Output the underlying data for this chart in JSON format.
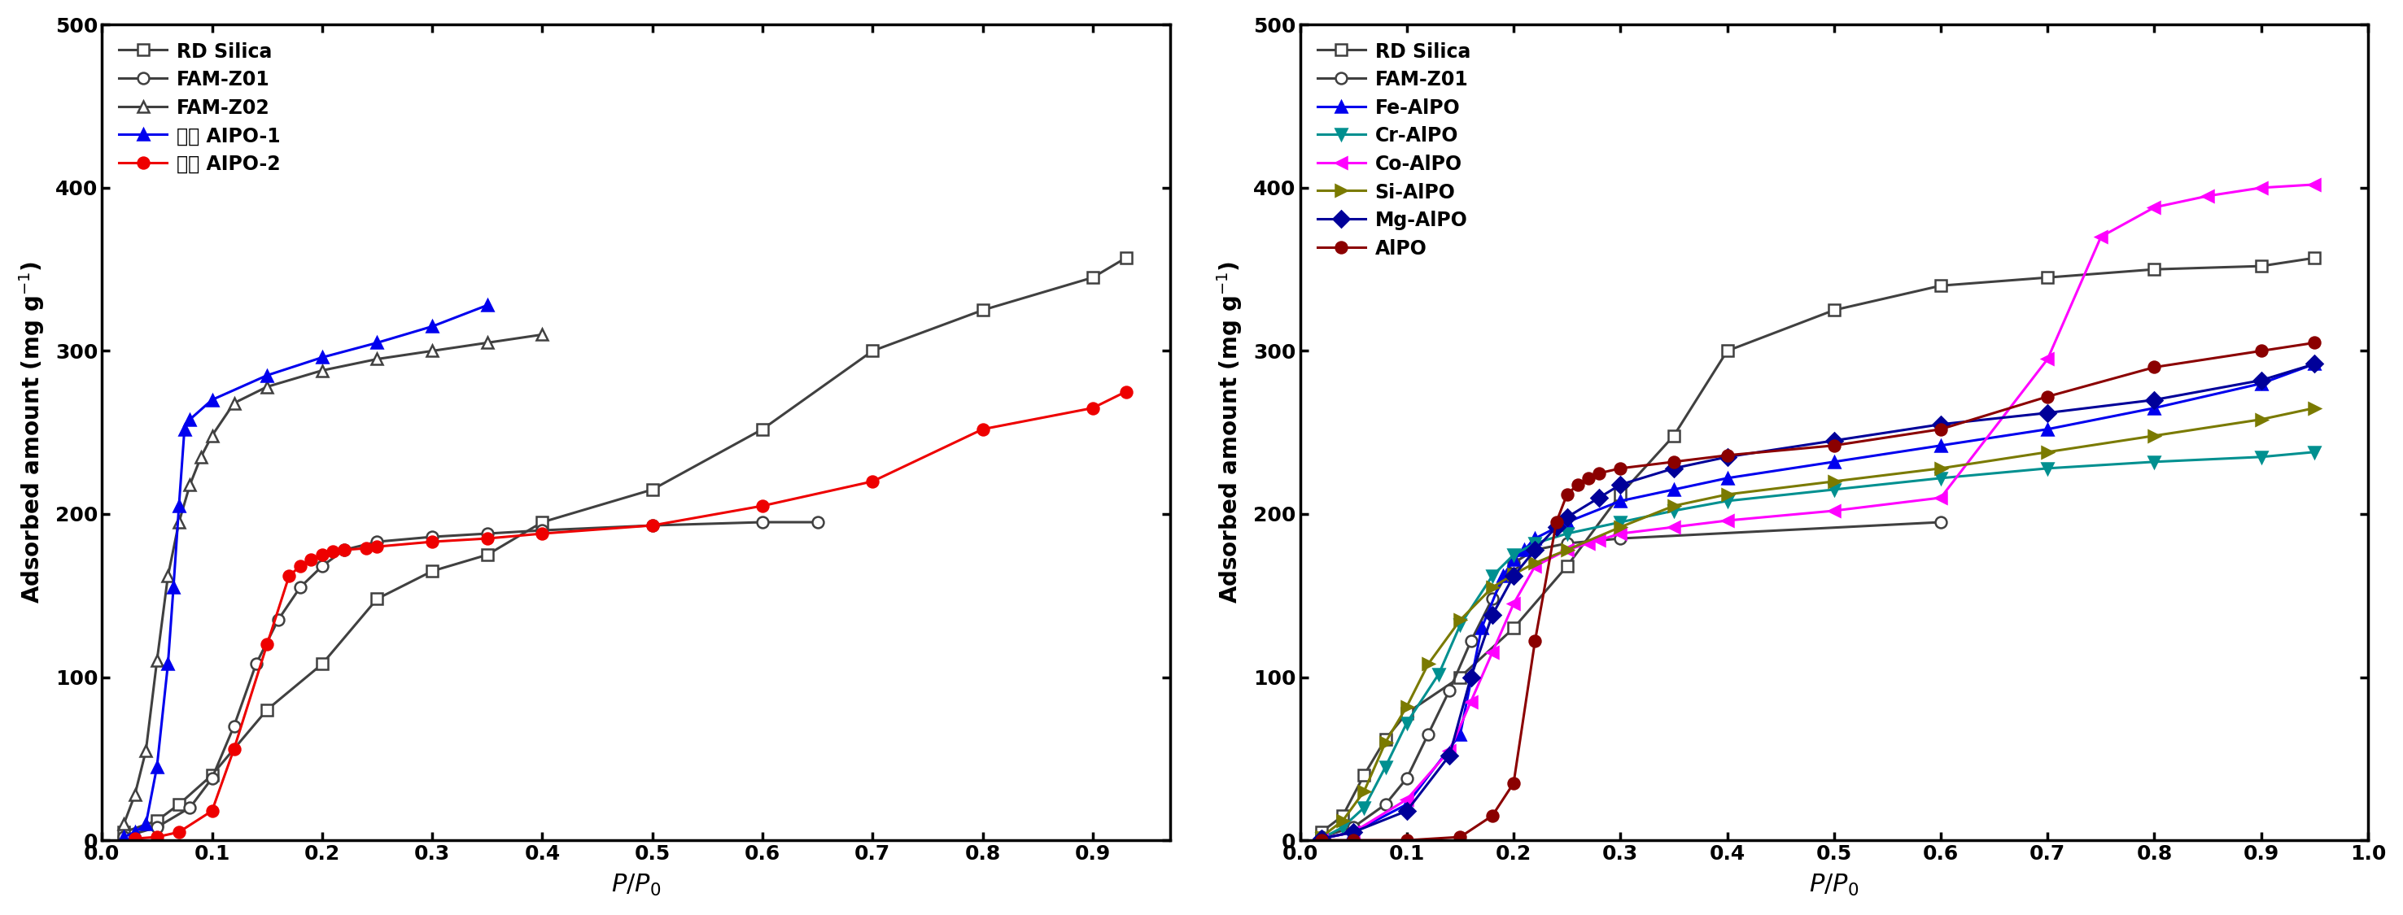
{
  "left": {
    "series": [
      {
        "label": "RD Silica",
        "color": "#404040",
        "marker": "s",
        "markerfacecolor": "white",
        "markeredgecolor": "#404040",
        "x": [
          0.02,
          0.05,
          0.07,
          0.1,
          0.15,
          0.2,
          0.25,
          0.3,
          0.35,
          0.4,
          0.5,
          0.6,
          0.7,
          0.8,
          0.9,
          0.93
        ],
        "y": [
          5,
          12,
          22,
          40,
          80,
          108,
          148,
          165,
          175,
          195,
          215,
          252,
          300,
          325,
          345,
          357
        ]
      },
      {
        "label": "FAM-Z01",
        "color": "#404040",
        "marker": "o",
        "markerfacecolor": "white",
        "markeredgecolor": "#404040",
        "x": [
          0.02,
          0.05,
          0.08,
          0.1,
          0.12,
          0.14,
          0.16,
          0.18,
          0.2,
          0.22,
          0.25,
          0.3,
          0.35,
          0.4,
          0.5,
          0.6,
          0.65
        ],
        "y": [
          2,
          8,
          20,
          38,
          70,
          108,
          135,
          155,
          168,
          178,
          183,
          186,
          188,
          190,
          193,
          195,
          195
        ]
      },
      {
        "label": "FAM-Z02",
        "color": "#404040",
        "marker": "^",
        "markerfacecolor": "white",
        "markeredgecolor": "#404040",
        "x": [
          0.02,
          0.03,
          0.04,
          0.05,
          0.06,
          0.07,
          0.08,
          0.09,
          0.1,
          0.12,
          0.15,
          0.2,
          0.25,
          0.3,
          0.35,
          0.4
        ],
        "y": [
          10,
          28,
          55,
          110,
          162,
          195,
          218,
          235,
          248,
          268,
          278,
          288,
          295,
          300,
          305,
          310
        ]
      },
      {
        "label": "합성 AIPO-1",
        "color": "#0000ee",
        "marker": "^",
        "markerfacecolor": "#0000ee",
        "markeredgecolor": "#0000ee",
        "x": [
          0.02,
          0.03,
          0.04,
          0.05,
          0.06,
          0.065,
          0.07,
          0.075,
          0.08,
          0.1,
          0.15,
          0.2,
          0.25,
          0.3,
          0.35
        ],
        "y": [
          2,
          5,
          10,
          45,
          108,
          155,
          205,
          252,
          258,
          270,
          285,
          296,
          305,
          315,
          328
        ]
      },
      {
        "label": "합성 AIPO-2",
        "color": "#ee0000",
        "marker": "o",
        "markerfacecolor": "#ee0000",
        "markeredgecolor": "#ee0000",
        "x": [
          0.03,
          0.05,
          0.07,
          0.1,
          0.12,
          0.15,
          0.17,
          0.18,
          0.19,
          0.2,
          0.21,
          0.22,
          0.24,
          0.25,
          0.3,
          0.35,
          0.4,
          0.5,
          0.6,
          0.7,
          0.8,
          0.9,
          0.93
        ],
        "y": [
          1,
          2,
          5,
          18,
          56,
          120,
          162,
          168,
          172,
          175,
          177,
          178,
          179,
          180,
          183,
          185,
          188,
          193,
          205,
          220,
          252,
          265,
          275
        ]
      }
    ],
    "xlim": [
      0.0,
      0.97
    ],
    "ylim": [
      0,
      500
    ],
    "xticks": [
      0.0,
      0.1,
      0.2,
      0.3,
      0.4,
      0.5,
      0.6,
      0.7,
      0.8,
      0.9
    ],
    "xticklabels": [
      "0.0",
      "0.1",
      "0.2",
      "0.3",
      "0.4",
      "0.5",
      "0.6",
      "0.7",
      "0.8",
      "0.9"
    ],
    "yticks": [
      0,
      100,
      200,
      300,
      400,
      500
    ],
    "yticklabels": [
      "0",
      "100",
      "200",
      "300",
      "400",
      "500"
    ]
  },
  "right": {
    "series": [
      {
        "label": "RD Silica",
        "color": "#404040",
        "marker": "s",
        "markerfacecolor": "white",
        "markeredgecolor": "#404040",
        "x": [
          0.02,
          0.04,
          0.06,
          0.08,
          0.1,
          0.15,
          0.2,
          0.25,
          0.3,
          0.35,
          0.4,
          0.5,
          0.6,
          0.7,
          0.8,
          0.9,
          0.95
        ],
        "y": [
          5,
          15,
          40,
          62,
          78,
          100,
          130,
          168,
          212,
          248,
          300,
          325,
          340,
          345,
          350,
          352,
          357
        ]
      },
      {
        "label": "FAM-Z01",
        "color": "#404040",
        "marker": "o",
        "markerfacecolor": "white",
        "markeredgecolor": "#404040",
        "x": [
          0.02,
          0.05,
          0.08,
          0.1,
          0.12,
          0.14,
          0.16,
          0.18,
          0.2,
          0.22,
          0.25,
          0.3,
          0.6
        ],
        "y": [
          2,
          8,
          22,
          38,
          65,
          92,
          122,
          148,
          170,
          178,
          182,
          185,
          195
        ]
      },
      {
        "label": "Fe-AlPO",
        "color": "#0000ee",
        "marker": "^",
        "markerfacecolor": "#0000ee",
        "markeredgecolor": "#0000ee",
        "x": [
          0.02,
          0.05,
          0.1,
          0.15,
          0.17,
          0.19,
          0.2,
          0.21,
          0.22,
          0.25,
          0.3,
          0.35,
          0.4,
          0.5,
          0.6,
          0.7,
          0.8,
          0.9,
          0.95
        ],
        "y": [
          1,
          5,
          22,
          65,
          130,
          162,
          172,
          178,
          185,
          195,
          208,
          215,
          222,
          232,
          242,
          252,
          265,
          280,
          292
        ]
      },
      {
        "label": "Cr-AlPO",
        "color": "#009090",
        "marker": "v",
        "markerfacecolor": "#009090",
        "markeredgecolor": "#009090",
        "x": [
          0.02,
          0.04,
          0.06,
          0.08,
          0.1,
          0.13,
          0.15,
          0.18,
          0.2,
          0.22,
          0.25,
          0.3,
          0.35,
          0.4,
          0.5,
          0.6,
          0.7,
          0.8,
          0.9,
          0.95
        ],
        "y": [
          1,
          8,
          20,
          45,
          72,
          102,
          132,
          162,
          175,
          182,
          188,
          195,
          202,
          208,
          215,
          222,
          228,
          232,
          235,
          238
        ]
      },
      {
        "label": "Co-AlPO",
        "color": "#ff00ff",
        "marker": "<",
        "markerfacecolor": "#ff00ff",
        "markeredgecolor": "#ff00ff",
        "x": [
          0.02,
          0.05,
          0.1,
          0.14,
          0.16,
          0.18,
          0.2,
          0.22,
          0.25,
          0.27,
          0.28,
          0.3,
          0.35,
          0.4,
          0.5,
          0.6,
          0.7,
          0.75,
          0.8,
          0.85,
          0.9,
          0.95
        ],
        "y": [
          1,
          5,
          25,
          55,
          85,
          115,
          145,
          168,
          178,
          182,
          184,
          188,
          192,
          196,
          202,
          210,
          295,
          370,
          388,
          395,
          400,
          402
        ]
      },
      {
        "label": "Si-AlPO",
        "color": "#7a7a00",
        "marker": ">",
        "markerfacecolor": "#7a7a00",
        "markeredgecolor": "#7a7a00",
        "x": [
          0.02,
          0.04,
          0.06,
          0.08,
          0.1,
          0.12,
          0.15,
          0.18,
          0.2,
          0.22,
          0.25,
          0.3,
          0.35,
          0.4,
          0.5,
          0.6,
          0.7,
          0.8,
          0.9,
          0.95
        ],
        "y": [
          2,
          12,
          30,
          60,
          82,
          108,
          135,
          155,
          163,
          170,
          178,
          192,
          205,
          212,
          220,
          228,
          238,
          248,
          258,
          265
        ]
      },
      {
        "label": "Mg-AlPO",
        "color": "#000099",
        "marker": "D",
        "markerfacecolor": "#000099",
        "markeredgecolor": "#000099",
        "x": [
          0.02,
          0.05,
          0.1,
          0.14,
          0.16,
          0.18,
          0.2,
          0.22,
          0.24,
          0.25,
          0.28,
          0.3,
          0.35,
          0.4,
          0.5,
          0.6,
          0.7,
          0.8,
          0.9,
          0.95
        ],
        "y": [
          1,
          5,
          18,
          52,
          100,
          138,
          162,
          178,
          192,
          198,
          210,
          218,
          228,
          235,
          245,
          255,
          262,
          270,
          282,
          292
        ]
      },
      {
        "label": "AlPO",
        "color": "#8b0000",
        "marker": "o",
        "markerfacecolor": "#8b0000",
        "markeredgecolor": "#8b0000",
        "x": [
          0.02,
          0.05,
          0.1,
          0.15,
          0.18,
          0.2,
          0.22,
          0.24,
          0.25,
          0.26,
          0.27,
          0.28,
          0.3,
          0.35,
          0.4,
          0.5,
          0.6,
          0.7,
          0.8,
          0.9,
          0.95
        ],
        "y": [
          0,
          0,
          0,
          2,
          15,
          35,
          122,
          195,
          212,
          218,
          222,
          225,
          228,
          232,
          236,
          242,
          252,
          272,
          290,
          300,
          305
        ]
      }
    ],
    "xlim": [
      0.0,
      1.0
    ],
    "ylim": [
      0,
      500
    ],
    "xticks": [
      0.0,
      0.1,
      0.2,
      0.3,
      0.4,
      0.5,
      0.6,
      0.7,
      0.8,
      0.9,
      1.0
    ],
    "xticklabels": [
      "0.0",
      "0.1",
      "0.2",
      "0.3",
      "0.4",
      "0.5",
      "0.6",
      "0.7",
      "0.8",
      "0.9",
      "1.0"
    ],
    "yticks": [
      0,
      100,
      200,
      300,
      400,
      500
    ],
    "yticklabels": [
      "0",
      "100",
      "200",
      "300",
      "400",
      "500"
    ]
  },
  "background_color": "#ffffff",
  "linewidth": 2.2,
  "markersize": 10,
  "markeredgewidth": 1.8,
  "spine_linewidth": 2.5,
  "tick_fontsize": 18,
  "label_fontsize": 20,
  "legend_fontsize": 17
}
